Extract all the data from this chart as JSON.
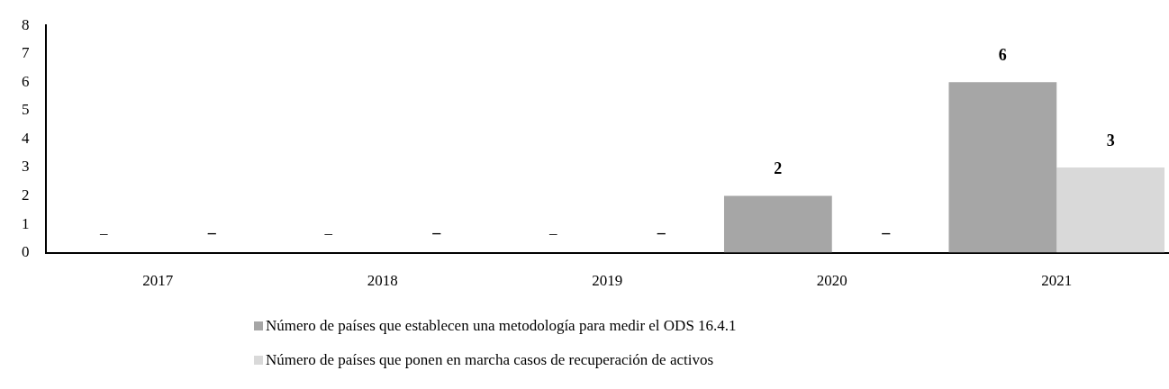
{
  "chart_data": {
    "type": "bar",
    "categories": [
      "2017",
      "2018",
      "2019",
      "2020",
      "2021"
    ],
    "series": [
      {
        "name": "Número de países que establecen una metodología para medir el ODS 16.4.1",
        "color": "#a6a6a6",
        "values": [
          null,
          null,
          null,
          2,
          6
        ],
        "value_labels": [
          "–",
          "–",
          "–",
          "2",
          "6"
        ]
      },
      {
        "name": "Número de países que ponen en marcha casos de recuperación de activos",
        "color": "#d9d9d9",
        "values": [
          null,
          null,
          null,
          null,
          3
        ],
        "value_labels": [
          "–",
          "–",
          "–",
          "–",
          "3"
        ]
      }
    ],
    "ylim": [
      0,
      8
    ],
    "yticks": [
      0,
      1,
      2,
      3,
      4,
      5,
      6,
      7,
      8
    ],
    "grid": false,
    "legend": "bottom"
  }
}
